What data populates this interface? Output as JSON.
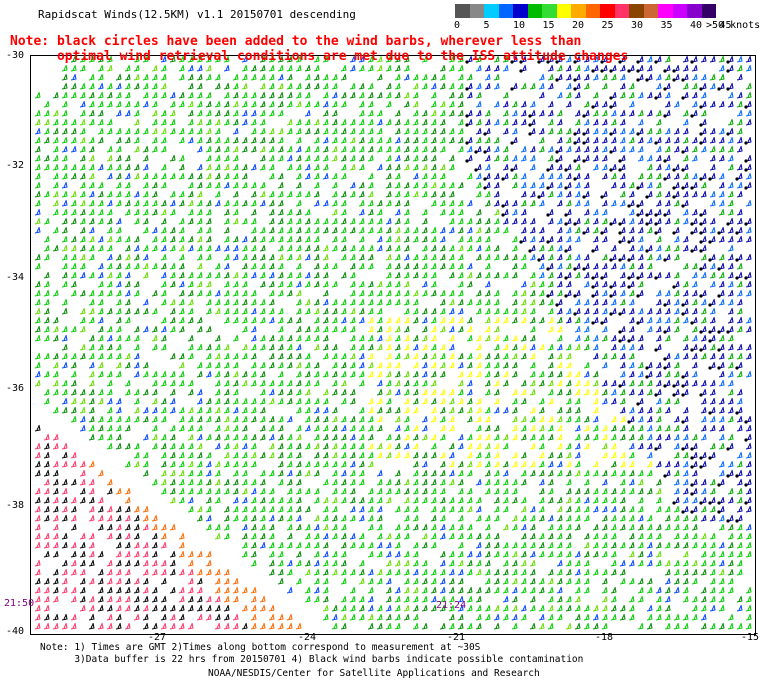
{
  "title": "Rapidscat Winds(12.5KM) v1.1 20150701 descending",
  "note_line1": "Note: black circles have been added to the wind barbs, wherever less than",
  "note_line2": "      optimal wind retrieval conditions are met due to the ISS attitude changes",
  "scale": {
    "colors": [
      "#555555",
      "#888888",
      "#00ccff",
      "#0066ff",
      "#0000cc",
      "#00bb00",
      "#33dd33",
      "#ffff00",
      "#ffaa00",
      "#ff6600",
      "#ff0000",
      "#ff3366",
      "#884400",
      "#cc6633",
      "#ff00ff",
      "#cc00ff",
      "#8800cc",
      "#330066"
    ],
    "labels": [
      "0",
      "5",
      "10",
      "15",
      "20",
      "25",
      "30",
      "35",
      "40",
      "45",
      ">50 knots"
    ]
  },
  "lat_labels": [
    "-30",
    "-32",
    "-34",
    "-36",
    "-38",
    "-40"
  ],
  "lon_labels": [
    "-27",
    "-24",
    "-21",
    "-18",
    "-15"
  ],
  "timestamps": [
    "21:50",
    "21:24"
  ],
  "footer_line1": "Note: 1) Times are GMT 2)Times along bottom correspond to measurement at ~30S",
  "footer_line2": "      3)Data buffer is 22 hrs from 20150701 4) Black wind barbs indicate possible contamination",
  "credit": "NOAA/NESDIS/Center for Satellite Applications and Research"
}
